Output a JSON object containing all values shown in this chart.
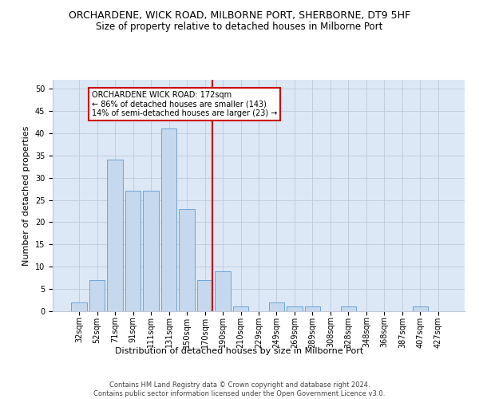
{
  "title": "ORCHARDENE, WICK ROAD, MILBORNE PORT, SHERBORNE, DT9 5HF",
  "subtitle": "Size of property relative to detached houses in Milborne Port",
  "xlabel": "Distribution of detached houses by size in Milborne Port",
  "ylabel": "Number of detached properties",
  "categories": [
    "32sqm",
    "52sqm",
    "71sqm",
    "91sqm",
    "111sqm",
    "131sqm",
    "150sqm",
    "170sqm",
    "190sqm",
    "210sqm",
    "229sqm",
    "249sqm",
    "269sqm",
    "289sqm",
    "308sqm",
    "328sqm",
    "348sqm",
    "368sqm",
    "387sqm",
    "407sqm",
    "427sqm"
  ],
  "values": [
    2,
    7,
    34,
    27,
    27,
    41,
    23,
    7,
    9,
    1,
    0,
    2,
    1,
    1,
    0,
    1,
    0,
    0,
    0,
    1,
    0
  ],
  "bar_color": "#c5d8ed",
  "bar_edge_color": "#5b9bd5",
  "vline_color": "#cc0000",
  "annotation_text": "ORCHARDENE WICK ROAD: 172sqm\n← 86% of detached houses are smaller (143)\n14% of semi-detached houses are larger (23) →",
  "annotation_box_color": "#ffffff",
  "annotation_box_edge": "#cc0000",
  "ylim": [
    0,
    52
  ],
  "yticks": [
    0,
    5,
    10,
    15,
    20,
    25,
    30,
    35,
    40,
    45,
    50
  ],
  "grid_color": "#c0c8d8",
  "bg_color": "#dce8f5",
  "footer": "Contains HM Land Registry data © Crown copyright and database right 2024.\nContains public sector information licensed under the Open Government Licence v3.0.",
  "title_fontsize": 9,
  "subtitle_fontsize": 8.5,
  "axis_label_fontsize": 8,
  "tick_fontsize": 7,
  "footer_fontsize": 6
}
